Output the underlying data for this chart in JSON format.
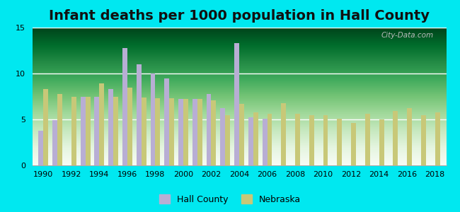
{
  "title": "Infant deaths per 1000 population in Hall County",
  "years": [
    1990,
    1991,
    1992,
    1993,
    1994,
    1995,
    1996,
    1997,
    1998,
    1999,
    2000,
    2001,
    2002,
    2003,
    2004,
    2005,
    2006,
    2007,
    2008,
    2009,
    2010,
    2011,
    2012,
    2013,
    2014,
    2015,
    2016,
    2017,
    2018
  ],
  "hall_county": [
    3.8,
    4.9,
    null,
    7.5,
    7.5,
    8.3,
    12.8,
    11.0,
    10.0,
    9.5,
    7.2,
    7.2,
    7.8,
    6.2,
    13.3,
    5.2,
    5.1,
    null,
    null,
    null,
    null,
    null,
    null,
    null,
    null,
    null,
    null,
    null,
    null
  ],
  "nebraska": [
    8.3,
    7.8,
    7.5,
    7.5,
    8.9,
    7.5,
    8.5,
    7.4,
    7.3,
    7.3,
    7.2,
    7.2,
    7.1,
    5.5,
    6.7,
    5.8,
    5.6,
    6.8,
    5.6,
    5.5,
    5.5,
    5.1,
    4.6,
    5.6,
    5.0,
    5.9,
    6.2,
    5.5,
    5.8
  ],
  "hall_county_color": "#b8aed4",
  "nebraska_color": "#c8c878",
  "outer_bg": "#00e8f0",
  "plot_bg": "#e8f5e8",
  "ylim": [
    0,
    15
  ],
  "yticks": [
    0,
    5,
    10,
    15
  ],
  "title_fontsize": 14,
  "watermark": "City-Data.com",
  "bar_width": 0.35
}
